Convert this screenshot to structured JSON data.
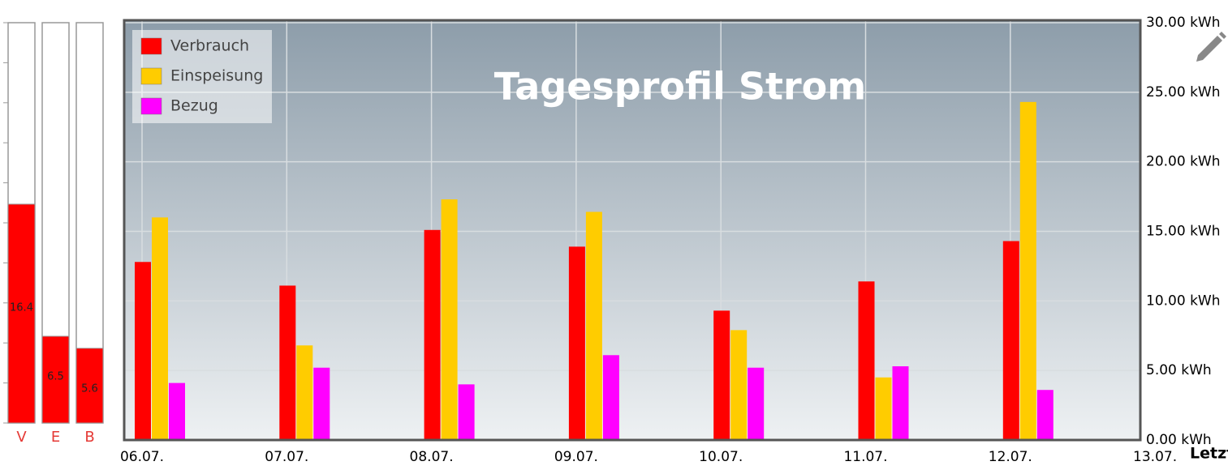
{
  "gauges": {
    "ylim": [
      0,
      30
    ],
    "yticks": [
      0,
      3,
      6,
      9,
      12,
      15,
      18,
      21,
      24,
      27,
      30
    ],
    "items": [
      {
        "label": "V",
        "value": 16.4,
        "color": "#ff0000"
      },
      {
        "label": "E",
        "value": 6.5,
        "color": "#ff0000"
      },
      {
        "label": "B",
        "value": 5.6,
        "color": "#ff0000"
      }
    ]
  },
  "chart_data": {
    "type": "bar",
    "title": "Tagesprofil Strom",
    "categories": [
      "06.07.",
      "07.07.",
      "08.07.",
      "09.07.",
      "10.07.",
      "11.07.",
      "12.07.",
      "13.07."
    ],
    "series": [
      {
        "name": "Verbrauch",
        "color": "#ff0000",
        "values": [
          12.8,
          11.1,
          15.1,
          13.9,
          9.3,
          11.4,
          14.3,
          null
        ]
      },
      {
        "name": "Einspeisung",
        "color": "#ffcc00",
        "values": [
          16.0,
          6.8,
          17.3,
          16.4,
          7.9,
          4.5,
          24.3,
          null
        ]
      },
      {
        "name": "Bezug",
        "color": "#ff00ff",
        "values": [
          4.1,
          5.2,
          4.0,
          6.1,
          5.2,
          5.3,
          3.6,
          null
        ]
      }
    ],
    "ylim": [
      0,
      30
    ],
    "yticks": [
      {
        "value": 0,
        "label": "0.00 kWh"
      },
      {
        "value": 5,
        "label": "5.00 kWh"
      },
      {
        "value": 10,
        "label": "10.00 kWh"
      },
      {
        "value": 15,
        "label": "15.00 kWh"
      },
      {
        "value": 20,
        "label": "20.00 kWh"
      },
      {
        "value": 25,
        "label": "25.00 kWh"
      },
      {
        "value": 30,
        "label": "30.00 kWh"
      }
    ],
    "grid": true,
    "legend": "top-left"
  },
  "footer": {
    "cut_label": "Letzt"
  }
}
